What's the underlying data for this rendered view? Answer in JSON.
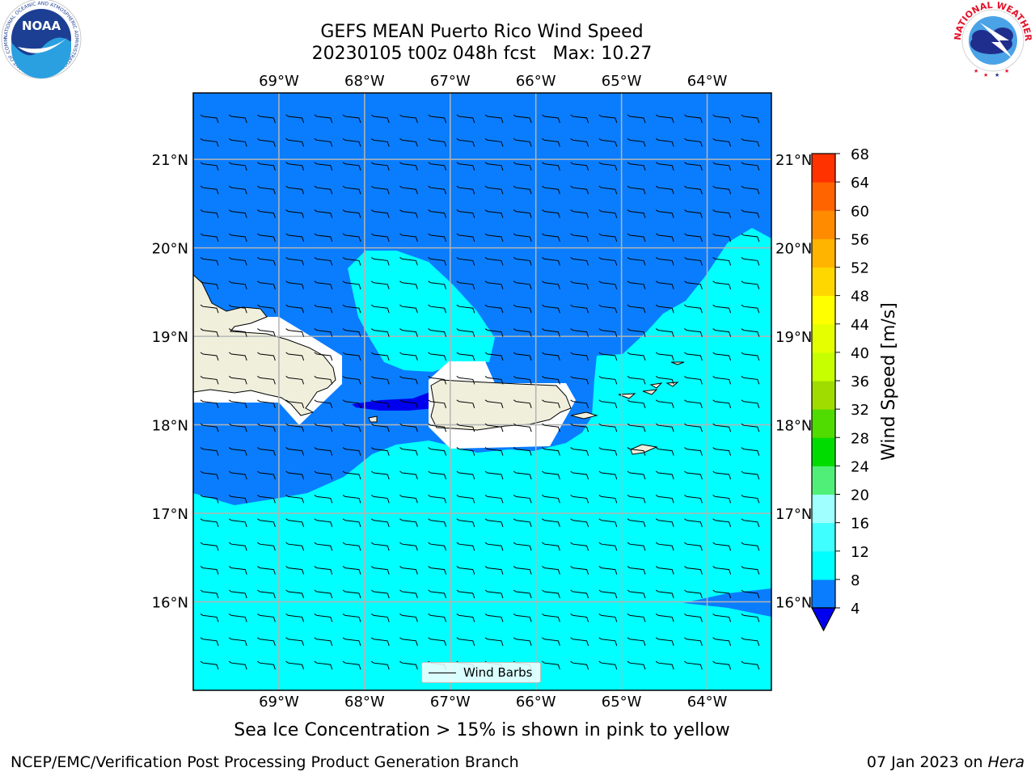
{
  "header": {
    "title_line1": "GEFS MEAN Puerto Rico Wind Speed",
    "title_line2": "20230105 t00z 048h fcst   Max: 10.27"
  },
  "logos": {
    "left": "NOAA",
    "left_ring": "NATIONAL OCEANIC AND ATMOSPHERIC ADMINISTRATION · U.S. DEPARTMENT OF COMMERCE",
    "right_ring": "NATIONAL WEATHER SERVICE"
  },
  "map": {
    "lon_labels": [
      "69°W",
      "68°W",
      "67°W",
      "66°W",
      "65°W",
      "64°W"
    ],
    "lon_values": [
      -69,
      -68,
      -67,
      -66,
      -65,
      -64
    ],
    "lat_labels": [
      "21°N",
      "20°N",
      "19°N",
      "18°N",
      "17°N",
      "16°N"
    ],
    "lat_values": [
      21,
      20,
      19,
      18,
      17,
      16
    ],
    "extent": {
      "lon_min": -70,
      "lon_max": -63.25,
      "lat_min": 15,
      "lat_max": 21.75
    },
    "colors": {
      "band_4_8": "#0a7dff",
      "band_8_12": "#00ffff",
      "land": "#efefdc",
      "masked": "#ffffff",
      "below_4": "#0000ee"
    }
  },
  "legend": {
    "label": "Wind Barbs"
  },
  "colorbar": {
    "label": "Wind Speed [m/s]",
    "ticks": [
      "68",
      "64",
      "60",
      "56",
      "52",
      "48",
      "44",
      "40",
      "36",
      "32",
      "28",
      "24",
      "20",
      "16",
      "12",
      "8",
      "4"
    ],
    "levels": [
      4,
      8,
      12,
      16,
      20,
      24,
      28,
      32,
      36,
      40,
      44,
      48,
      52,
      56,
      60,
      64,
      68
    ],
    "colors": [
      "#0a7dff",
      "#00ffff",
      "#40ffff",
      "#a0ffff",
      "#50f078",
      "#00dc00",
      "#50dc00",
      "#a0dc00",
      "#c8ff00",
      "#e6ff00",
      "#ffff00",
      "#ffd700",
      "#ffb400",
      "#ff8c00",
      "#ff6400",
      "#ff3200"
    ],
    "under_color": "#0000ee"
  },
  "caption": "Sea Ice Concentration > 15% is shown in pink to yellow",
  "footer": {
    "left": "NCEP/EMC/Verification Post Processing Product Generation Branch",
    "right_date": "07 Jan 2023 on ",
    "right_host": "Hera"
  }
}
